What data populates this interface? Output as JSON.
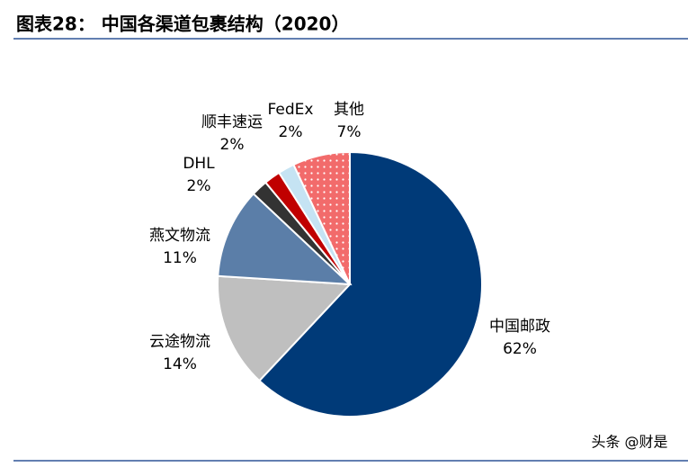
{
  "chart_data": {
    "type": "pie",
    "title": "图表28：  中国各渠道包裹结构（2020）",
    "categories": [
      "中国邮政",
      "云途物流",
      "燕文物流",
      "DHL",
      "顺丰速运",
      "FedEx",
      "其他"
    ],
    "values": [
      62,
      14,
      11,
      2,
      2,
      2,
      7
    ],
    "value_labels": [
      "62%",
      "14%",
      "11%",
      "2%",
      "2%",
      "2%",
      "7%"
    ],
    "colors": [
      "#003a78",
      "#bfbfbf",
      "#5b7ea8",
      "#333333",
      "#c00000",
      "#c5e3f3",
      "#f26b6b"
    ],
    "dotted": [
      false,
      false,
      false,
      false,
      false,
      false,
      true
    ],
    "watermark": "头条 @财是"
  }
}
